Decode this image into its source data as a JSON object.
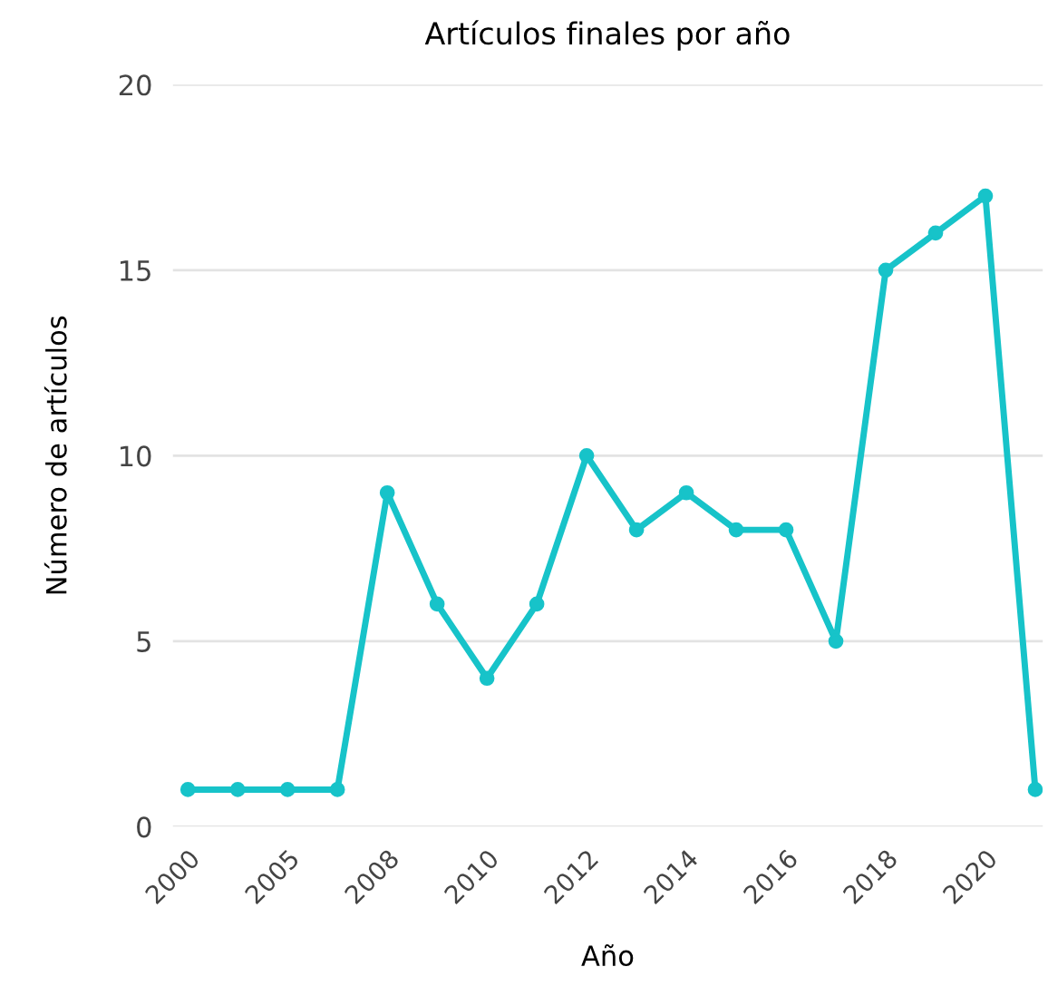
{
  "chart_data": {
    "type": "line",
    "title": "Artículos finales por año",
    "xlabel": "Año",
    "ylabel": "Número de artículos",
    "categories": [
      "2000",
      null,
      "2005",
      null,
      "2008",
      null,
      "2010",
      null,
      "2012",
      null,
      "2014",
      null,
      "2016",
      null,
      "2018",
      null,
      "2020",
      null
    ],
    "series": [
      {
        "color": "#17c3c9",
        "values": [
          1,
          1,
          1,
          1,
          9,
          6,
          4,
          6,
          10,
          8,
          9,
          8,
          8,
          5,
          15,
          16,
          17,
          1
        ]
      }
    ],
    "ylim": [
      0,
      20
    ],
    "yticks": [
      0,
      5,
      10,
      15,
      20
    ],
    "grid": "y",
    "marker": "circle",
    "line_style": "solid",
    "legend": false
  }
}
